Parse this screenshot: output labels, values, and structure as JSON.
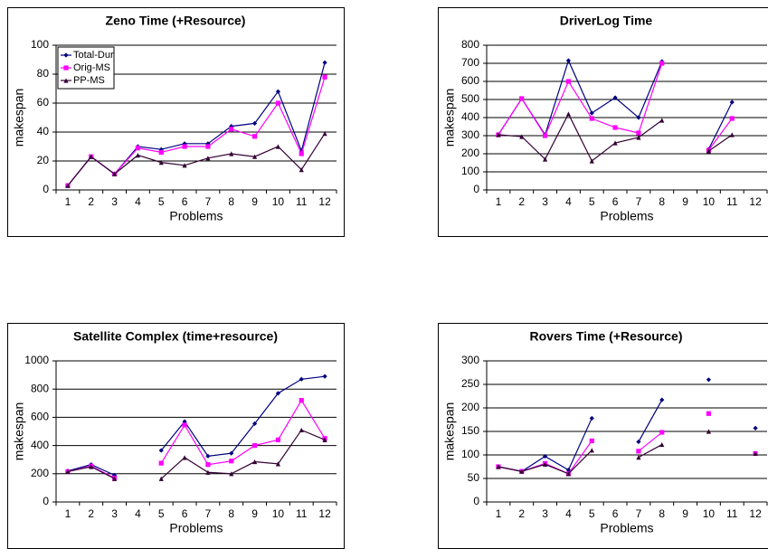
{
  "chart_data": [
    {
      "type": "line",
      "title": "Zeno Time (+Resource)",
      "xlabel": "Problems",
      "ylabel": "makespan",
      "categories": [
        1,
        2,
        3,
        4,
        5,
        6,
        7,
        8,
        9,
        10,
        11,
        12
      ],
      "series": [
        {
          "name": "Total-Dur",
          "color": "#000080",
          "values": [
            3,
            23,
            11,
            30,
            28,
            32,
            32,
            44,
            46,
            68,
            27,
            88
          ]
        },
        {
          "name": "Orig-MS",
          "color": "#ff00ff",
          "values": [
            3,
            23,
            11,
            29,
            26,
            30,
            30,
            42,
            37,
            60,
            25,
            78
          ]
        },
        {
          "name": "PP-MS",
          "color": "#330033",
          "values": [
            3,
            23,
            11,
            24,
            19,
            17,
            22,
            25,
            23,
            30,
            14,
            39
          ]
        }
      ],
      "ylim": [
        0,
        100
      ],
      "yticks": [
        0,
        20,
        40,
        60,
        80,
        100
      ],
      "grid": true,
      "legend": "upper left"
    },
    {
      "type": "line",
      "title": "DriverLog Time",
      "xlabel": "Problems",
      "ylabel": "makespan",
      "categories": [
        1,
        2,
        3,
        4,
        5,
        6,
        7,
        8,
        9,
        10,
        11,
        12
      ],
      "series": [
        {
          "name": "Total-Dur",
          "color": "#000080",
          "values": [
            305,
            505,
            305,
            715,
            425,
            510,
            400,
            710,
            null,
            225,
            485,
            null
          ]
        },
        {
          "name": "Orig-MS",
          "color": "#ff00ff",
          "values": [
            305,
            505,
            300,
            600,
            395,
            345,
            315,
            700,
            null,
            220,
            395,
            null
          ]
        },
        {
          "name": "PP-MS",
          "color": "#330033",
          "values": [
            305,
            295,
            170,
            420,
            160,
            260,
            290,
            385,
            null,
            215,
            305,
            null
          ]
        }
      ],
      "ylim": [
        0,
        800
      ],
      "yticks": [
        0,
        100,
        200,
        300,
        400,
        500,
        600,
        700,
        800
      ],
      "grid": true
    },
    {
      "type": "line",
      "title": "Satellite Complex (time+resource)",
      "xlabel": "Problems",
      "ylabel": "makespan",
      "categories": [
        1,
        2,
        3,
        4,
        5,
        6,
        7,
        8,
        9,
        10,
        11,
        12
      ],
      "series": [
        {
          "name": "Total-Dur",
          "color": "#000080",
          "values": [
            220,
            265,
            190,
            null,
            365,
            570,
            325,
            345,
            555,
            770,
            870,
            890
          ]
        },
        {
          "name": "Orig-MS",
          "color": "#ff00ff",
          "values": [
            215,
            255,
            170,
            null,
            275,
            545,
            265,
            290,
            400,
            440,
            720,
            450
          ]
        },
        {
          "name": "PP-MS",
          "color": "#330033",
          "values": [
            215,
            250,
            165,
            null,
            165,
            315,
            210,
            200,
            285,
            270,
            510,
            440
          ]
        }
      ],
      "ylim": [
        0,
        1000
      ],
      "yticks": [
        0,
        200,
        400,
        600,
        800,
        1000
      ],
      "grid": true
    },
    {
      "type": "line",
      "title": "Rovers Time (+Resource)",
      "xlabel": "Problems",
      "ylabel": "makespan",
      "categories": [
        1,
        2,
        3,
        4,
        5,
        6,
        7,
        8,
        9,
        10,
        11,
        12
      ],
      "series": [
        {
          "name": "Total-Dur",
          "color": "#000080",
          "values": [
            75,
            65,
            97,
            68,
            178,
            null,
            128,
            217,
            null,
            260,
            null,
            157
          ]
        },
        {
          "name": "Orig-MS",
          "color": "#ff00ff",
          "values": [
            75,
            65,
            82,
            60,
            130,
            null,
            108,
            148,
            null,
            188,
            null,
            103
          ]
        },
        {
          "name": "PP-MS",
          "color": "#330033",
          "values": [
            75,
            65,
            80,
            60,
            110,
            null,
            95,
            122,
            null,
            150,
            null,
            103
          ]
        }
      ],
      "ylim": [
        0,
        300
      ],
      "yticks": [
        0,
        50,
        100,
        150,
        200,
        250,
        300
      ],
      "grid": true
    }
  ]
}
